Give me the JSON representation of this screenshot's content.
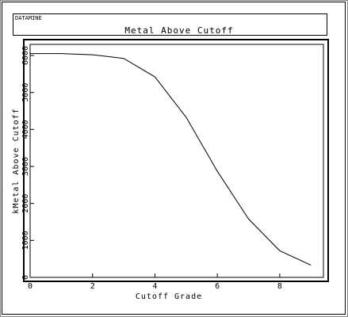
{
  "header": {
    "label": "DATAMINE"
  },
  "chart_data": {
    "type": "line",
    "title": "Metal Above Cutoff",
    "x_label": "Cutoff Grade",
    "y_label": "kMetal Above Cutoff",
    "x": [
      0,
      1,
      2,
      3,
      4,
      5,
      6,
      7,
      8,
      9
    ],
    "values": [
      6050,
      6050,
      6020,
      5920,
      5420,
      4330,
      2870,
      1580,
      720,
      330
    ],
    "color": "#000000",
    "xlim": [
      0,
      9.4
    ],
    "ylim": [
      0,
      6300
    ],
    "xticks": [
      0,
      2,
      4,
      6,
      8
    ],
    "yticks": [
      0,
      1000,
      2000,
      3000,
      4000,
      5000,
      6000
    ]
  }
}
